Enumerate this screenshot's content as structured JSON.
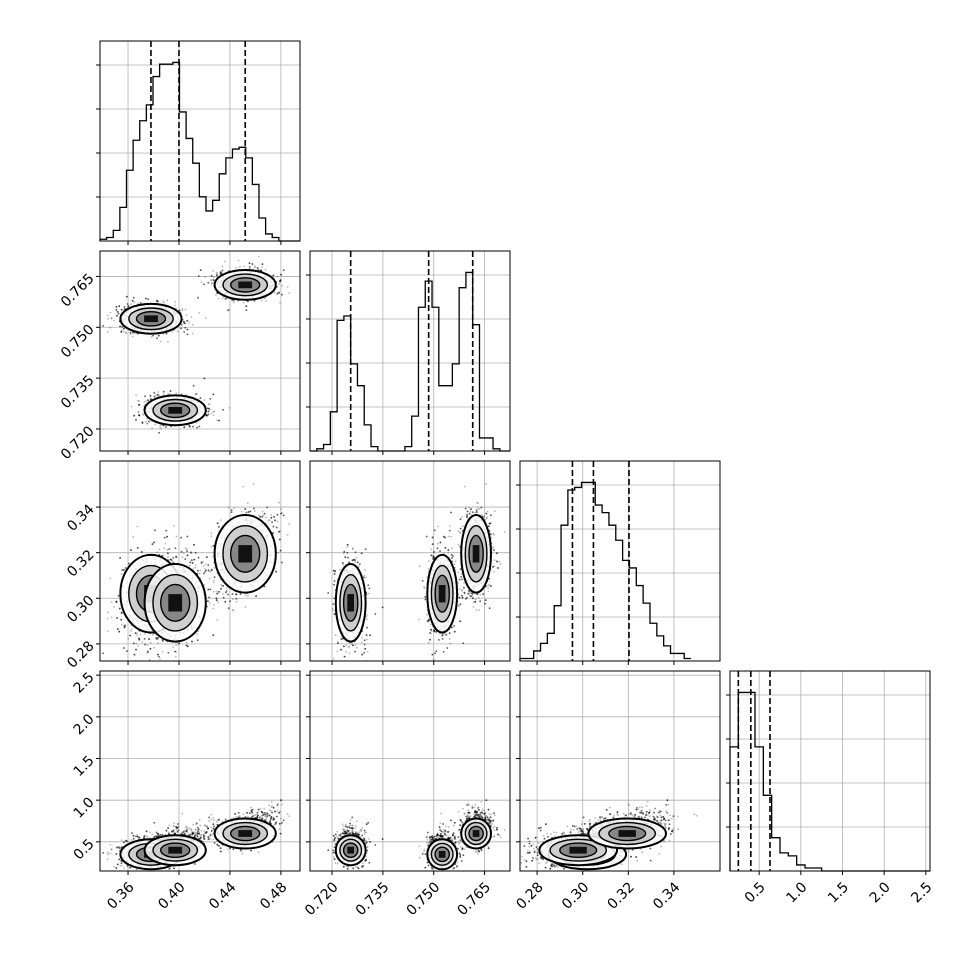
{
  "chart_data": {
    "type": "corner",
    "title": "",
    "parameters": [
      {
        "label": "",
        "ticks": [
          "0.36",
          "0.40",
          "0.44",
          "0.48"
        ],
        "range": [
          0.338,
          0.495
        ],
        "quantiles": [
          0.378,
          0.4,
          0.452
        ]
      },
      {
        "label": "",
        "ticks": [
          "0.720",
          "0.735",
          "0.750",
          "0.765"
        ],
        "range": [
          0.7135,
          0.7725
        ],
        "quantiles": [
          0.7255,
          0.7485,
          0.7615
        ]
      },
      {
        "label": "",
        "ticks": [
          "0.28",
          "0.30",
          "0.32",
          "0.34"
        ],
        "range": [
          0.2725,
          0.3602
        ],
        "quantiles": [
          0.2955,
          0.3047,
          0.3203
        ]
      },
      {
        "label": "",
        "ticks": [
          "0.5",
          "1.0",
          "1.5",
          "2.0",
          "2.5"
        ],
        "range": [
          0.15,
          2.55
        ],
        "quantiles": [
          0.25,
          0.4,
          0.63
        ]
      }
    ],
    "histograms": [
      {
        "param": 0,
        "edges": [
          0.338,
          0.3432,
          0.3484,
          0.3536,
          0.3588,
          0.364,
          0.3692,
          0.3744,
          0.3796,
          0.3848,
          0.39,
          0.3952,
          0.4004,
          0.4056,
          0.4108,
          0.416,
          0.4212,
          0.4264,
          0.4316,
          0.4368,
          0.442,
          0.4472,
          0.4524,
          0.4576,
          0.4628,
          0.468,
          0.4732,
          0.4784,
          0.4836,
          0.4888,
          0.495
        ],
        "counts": [
          1,
          2,
          6,
          19,
          40,
          57,
          68,
          77,
          93,
          100,
          100,
          101,
          73,
          58,
          44,
          25,
          17,
          23,
          38,
          47,
          52,
          53,
          47,
          32,
          13,
          4,
          2,
          0,
          0,
          0
        ]
      },
      {
        "param": 1,
        "edges": [
          0.7135,
          0.7155,
          0.7175,
          0.7195,
          0.7215,
          0.7235,
          0.7255,
          0.7275,
          0.7295,
          0.7315,
          0.7335,
          0.7355,
          0.7375,
          0.7395,
          0.7415,
          0.7435,
          0.7455,
          0.7475,
          0.7495,
          0.7515,
          0.7535,
          0.7555,
          0.7575,
          0.7595,
          0.7615,
          0.7635,
          0.7655,
          0.7675,
          0.7695,
          0.7715,
          0.7725
        ],
        "counts": [
          0,
          1,
          3,
          18,
          60,
          62,
          40,
          30,
          12,
          2,
          0,
          0,
          0,
          0,
          2,
          16,
          66,
          78,
          66,
          30,
          30,
          40,
          75,
          82,
          58,
          6,
          6,
          1,
          0,
          0
        ]
      },
      {
        "param": 2,
        "edges": [
          0.2725,
          0.2755,
          0.2785,
          0.2815,
          0.2845,
          0.2875,
          0.2905,
          0.2935,
          0.2965,
          0.2995,
          0.3025,
          0.3055,
          0.3085,
          0.3115,
          0.3145,
          0.3175,
          0.3205,
          0.3235,
          0.3265,
          0.3295,
          0.3325,
          0.3355,
          0.3385,
          0.3415,
          0.3445,
          0.3475
        ],
        "counts": [
          1,
          1,
          4,
          7,
          11,
          22,
          54,
          68,
          69,
          71,
          71,
          62,
          59,
          54,
          48,
          40,
          37,
          30,
          23,
          15,
          10,
          6,
          3,
          3,
          1
        ]
      },
      {
        "param": 3,
        "edges": [
          0.15,
          0.25,
          0.35,
          0.45,
          0.55,
          0.65,
          0.75,
          0.85,
          0.95,
          1.05,
          1.15,
          1.25,
          1.35,
          1.45,
          1.55,
          1.65,
          1.75,
          1.85,
          1.95,
          2.05,
          2.15,
          2.25,
          2.35,
          2.45,
          2.55
        ],
        "counts": [
          41,
          59,
          59,
          41,
          25,
          11,
          6,
          5,
          2,
          1,
          1,
          0,
          0,
          0,
          0,
          0,
          0,
          0,
          0,
          0,
          0,
          0,
          0,
          0
        ]
      }
    ],
    "modes": [
      {
        "p0": 0.378,
        "p1": 0.7525,
        "p2": 0.302,
        "p3": 0.35,
        "w": 0.35
      },
      {
        "p0": 0.397,
        "p1": 0.7255,
        "p2": 0.298,
        "p3": 0.4,
        "w": 0.3
      },
      {
        "p0": 0.452,
        "p1": 0.7625,
        "p2": 0.3195,
        "p3": 0.6,
        "w": 0.35
      }
    ],
    "grid": true,
    "legend": ""
  }
}
